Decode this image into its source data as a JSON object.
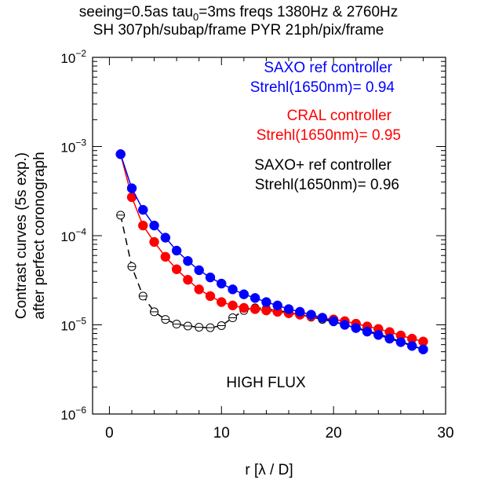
{
  "chart_data": {
    "type": "line",
    "title_line1_prefix": "seeing=0.5as  tau",
    "title_line1_sub": "0",
    "title_line1_suffix": "=3ms  freqs 1380Hz & 2760Hz",
    "title_line2": "SH 307ph/subap/frame  PYR 21ph/pix/frame",
    "xlabel": "r [λ / D]",
    "ylabel_line1": "Contrast curves (5s exp.)",
    "ylabel_line2": "after perfect coronograph",
    "xlim": [
      -1.5,
      30
    ],
    "ylim": [
      1e-06,
      0.01
    ],
    "yscale": "log",
    "x_ticks": [
      0,
      10,
      20,
      30
    ],
    "y_tick_exponents": [
      -6,
      -5,
      -4,
      -3,
      -2
    ],
    "y_tick_base": "10",
    "annotation": "HIGH FLUX",
    "series": [
      {
        "name": "SAXO ref controller",
        "name2": "Strehl(1650nm)= 0.94",
        "color": "#0000ff",
        "style": "solid",
        "marker": "filled-circle",
        "x": [
          1,
          2,
          3,
          4,
          5,
          6,
          7,
          8,
          9,
          10,
          11,
          12,
          13,
          14,
          15,
          16,
          17,
          18,
          19,
          20,
          21,
          22,
          23,
          24,
          25,
          26,
          27,
          28
        ],
        "y": [
          0.00082,
          0.00034,
          0.000195,
          0.00013,
          9.5e-05,
          6.8e-05,
          5.2e-05,
          4.1e-05,
          3.4e-05,
          2.9e-05,
          2.5e-05,
          2.2e-05,
          2e-05,
          1.8e-05,
          1.65e-05,
          1.5e-05,
          1.4e-05,
          1.3e-05,
          1.2e-05,
          1.1e-05,
          1e-05,
          9.2e-06,
          8.4e-06,
          7.7e-06,
          7e-06,
          6.4e-06,
          5.8e-06,
          5.3e-06
        ]
      },
      {
        "name": "CRAL controller",
        "name2": "Strehl(1650nm)= 0.95",
        "color": "#ff0000",
        "style": "solid",
        "marker": "filled-circle",
        "x": [
          1,
          2,
          3,
          4,
          5,
          6,
          7,
          8,
          9,
          10,
          11,
          12,
          13,
          14,
          15,
          16,
          17,
          18,
          19,
          20,
          21,
          22,
          23,
          24,
          25,
          26,
          27,
          28
        ],
        "y": [
          0.00082,
          0.00027,
          0.00013,
          8.5e-05,
          5.8e-05,
          4.2e-05,
          3.2e-05,
          2.5e-05,
          2.1e-05,
          1.8e-05,
          1.65e-05,
          1.55e-05,
          1.5e-05,
          1.45e-05,
          1.4e-05,
          1.35e-05,
          1.3e-05,
          1.25e-05,
          1.2e-05,
          1.15e-05,
          1.1e-05,
          1.03e-05,
          9.6e-06,
          9e-06,
          8.3e-06,
          7.6e-06,
          7e-06,
          6.5e-06
        ]
      },
      {
        "name": "SAXO+ ref controller",
        "name2": "Strehl(1650nm)= 0.96",
        "color": "#000000",
        "style": "dashed",
        "marker": "open-circle",
        "x": [
          1,
          2,
          3,
          4,
          5,
          6,
          7,
          8,
          9,
          10,
          11,
          12,
          13,
          14,
          15,
          16,
          17,
          18,
          19,
          20,
          21,
          22,
          23,
          24,
          25,
          26,
          27,
          28
        ],
        "y": [
          0.00017,
          4.5e-05,
          2.1e-05,
          1.4e-05,
          1.15e-05,
          1.02e-05,
          9.7e-06,
          9.4e-06,
          9.3e-06,
          9.8e-06,
          1.2e-05,
          1.45e-05,
          1.55e-05,
          1.52e-05,
          1.45e-05,
          1.38e-05,
          1.3e-05,
          1.22e-05,
          1.15e-05,
          1.08e-05,
          1e-05,
          9.3e-06,
          8.6e-06,
          7.9e-06,
          7.2e-06,
          6.5e-06,
          5.9e-06,
          5.3e-06
        ]
      }
    ]
  }
}
